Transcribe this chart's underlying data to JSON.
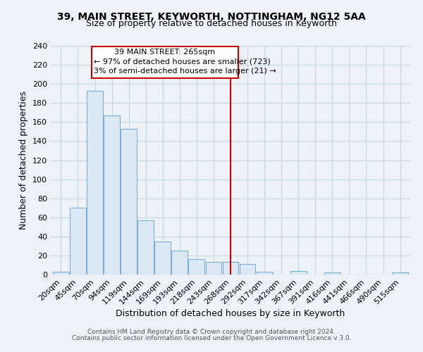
{
  "title1": "39, MAIN STREET, KEYWORTH, NOTTINGHAM, NG12 5AA",
  "title2": "Size of property relative to detached houses in Keyworth",
  "xlabel": "Distribution of detached houses by size in Keyworth",
  "ylabel": "Number of detached properties",
  "categories": [
    "20sqm",
    "45sqm",
    "70sqm",
    "94sqm",
    "119sqm",
    "144sqm",
    "169sqm",
    "193sqm",
    "218sqm",
    "243sqm",
    "268sqm",
    "292sqm",
    "317sqm",
    "342sqm",
    "367sqm",
    "391sqm",
    "416sqm",
    "441sqm",
    "466sqm",
    "490sqm",
    "515sqm"
  ],
  "values": [
    3,
    70,
    193,
    167,
    153,
    57,
    35,
    25,
    16,
    13,
    13,
    11,
    3,
    0,
    4,
    0,
    2,
    0,
    0,
    0,
    2
  ],
  "bar_color": "#dce9f5",
  "bar_edge_color": "#7aaed6",
  "marker_line_color": "#cc0000",
  "annotation_title": "39 MAIN STREET: 265sqm",
  "annotation_line1": "← 97% of detached houses are smaller (723)",
  "annotation_line2": "3% of semi-detached houses are larger (21) →",
  "annotation_box_color": "#cc0000",
  "ylim": [
    0,
    240
  ],
  "yticks": [
    0,
    20,
    40,
    60,
    80,
    100,
    120,
    140,
    160,
    180,
    200,
    220,
    240
  ],
  "footer1": "Contains HM Land Registry data © Crown copyright and database right 2024.",
  "footer2": "Contains public sector information licensed under the Open Government Licence v 3.0.",
  "bg_color": "#eef2f7",
  "grid_color": "#c8d4e0",
  "title1_fontsize": 10,
  "title2_fontsize": 9,
  "xlabel_fontsize": 9,
  "ylabel_fontsize": 9,
  "tick_fontsize": 8,
  "footer_fontsize": 6.5
}
